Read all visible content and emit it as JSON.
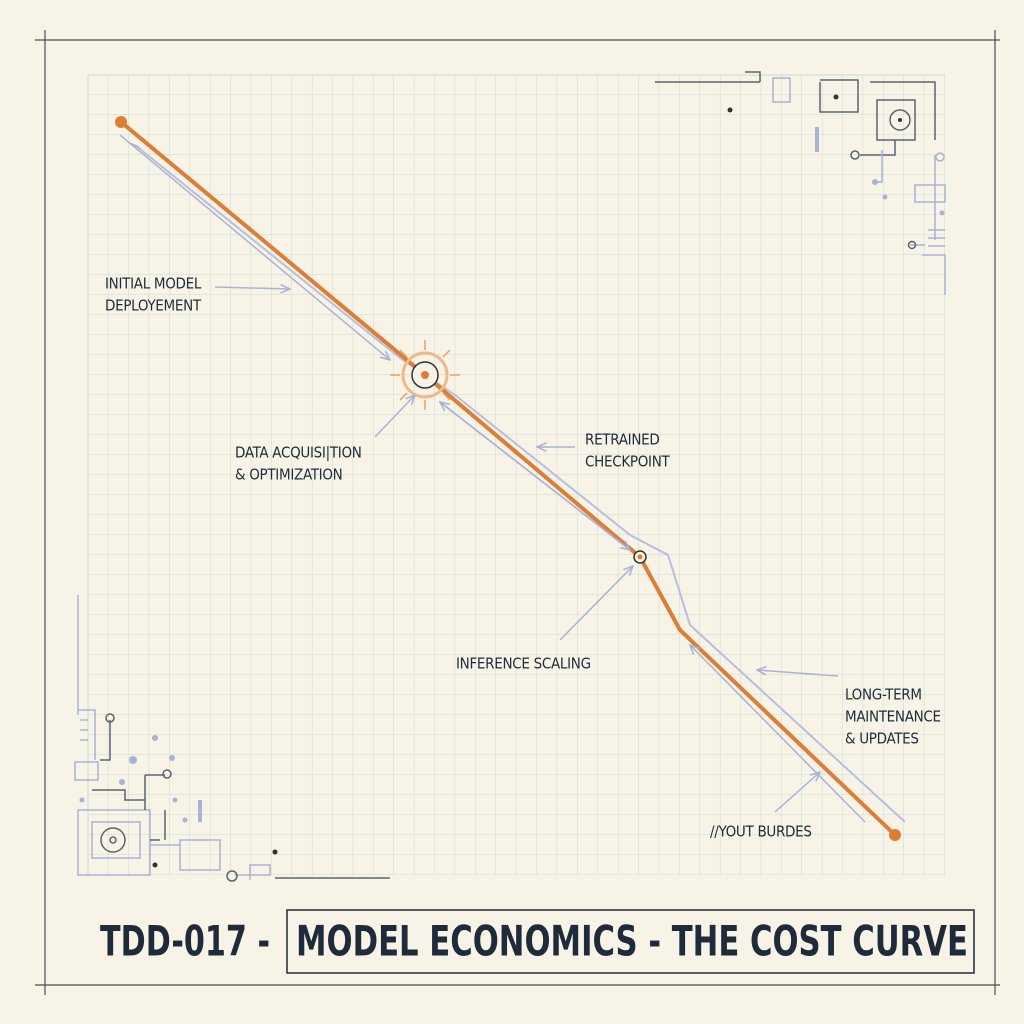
{
  "title": {
    "code": "TDD-017 -",
    "name": "MODEL ECONOMICS - THE COST CURVE"
  },
  "labels": [
    {
      "lines": [
        "INITIAL MODEL",
        "DEPLOYEMENT"
      ]
    },
    {
      "lines": [
        "DATA ACQUISI|TION",
        "& OPTIMIZATION"
      ]
    },
    {
      "lines": [
        "RETRAINED",
        "CHECKPOINT"
      ]
    },
    {
      "lines": [
        "INFERENCE SCALING"
      ]
    },
    {
      "lines": [
        "LONG-TERM",
        "MAINTENANCE",
        "& UPDATES"
      ]
    },
    {
      "lines": [
        "//YOUT BURDES"
      ]
    }
  ]
}
